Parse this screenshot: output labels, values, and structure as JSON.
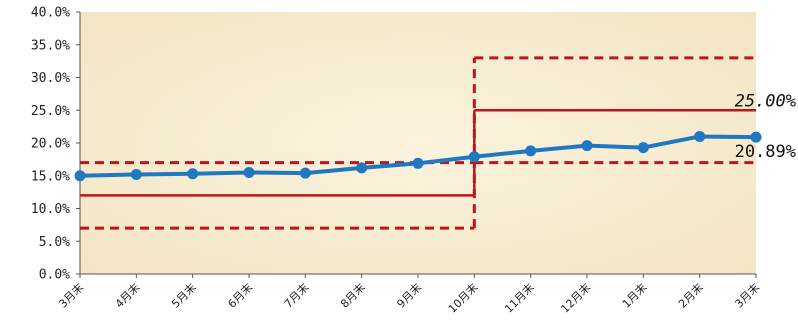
{
  "chart_data": {
    "type": "line",
    "title": "",
    "xlabel": "",
    "ylabel": "",
    "categories": [
      "3月末",
      "4月末",
      "5月末",
      "6月末",
      "7月末",
      "8月末",
      "9月末",
      "10月末",
      "11月末",
      "12月末",
      "1月末",
      "2月末",
      "3月末"
    ],
    "series": [
      {
        "values": [
          15.0,
          15.2,
          15.3,
          15.5,
          15.4,
          16.2,
          16.9,
          17.9,
          18.8,
          19.6,
          19.3,
          21.0,
          20.89
        ]
      }
    ],
    "ylim": [
      0,
      40
    ],
    "y_ticks": [
      "0.0%",
      "5.0%",
      "10.0%",
      "15.0%",
      "20.0%",
      "25.0%",
      "30.0%",
      "35.0%",
      "40.0%"
    ],
    "y_tick_values": [
      0,
      5,
      10,
      15,
      20,
      25,
      30,
      35,
      40
    ],
    "grid": false,
    "target_lines": [
      {
        "from_index": 0,
        "to_index": 7,
        "value": 12
      },
      {
        "from_index": 7,
        "to_index": 12,
        "value": 25
      }
    ],
    "range_bands": [
      {
        "from_index": 0,
        "to_index": 7,
        "low": 7,
        "high": 17
      },
      {
        "from_index": 7,
        "to_index": 12,
        "low": 17,
        "high": 33
      }
    ],
    "annotations": [
      {
        "text": "25.00%",
        "style": "italic"
      },
      {
        "text": "20.89%",
        "style": "normal"
      }
    ],
    "colors": {
      "series": "#1f78c1",
      "target": "#c0141c",
      "band": "#c0141c",
      "plot_background": "#f7ecd2",
      "axis": "#555555"
    }
  }
}
